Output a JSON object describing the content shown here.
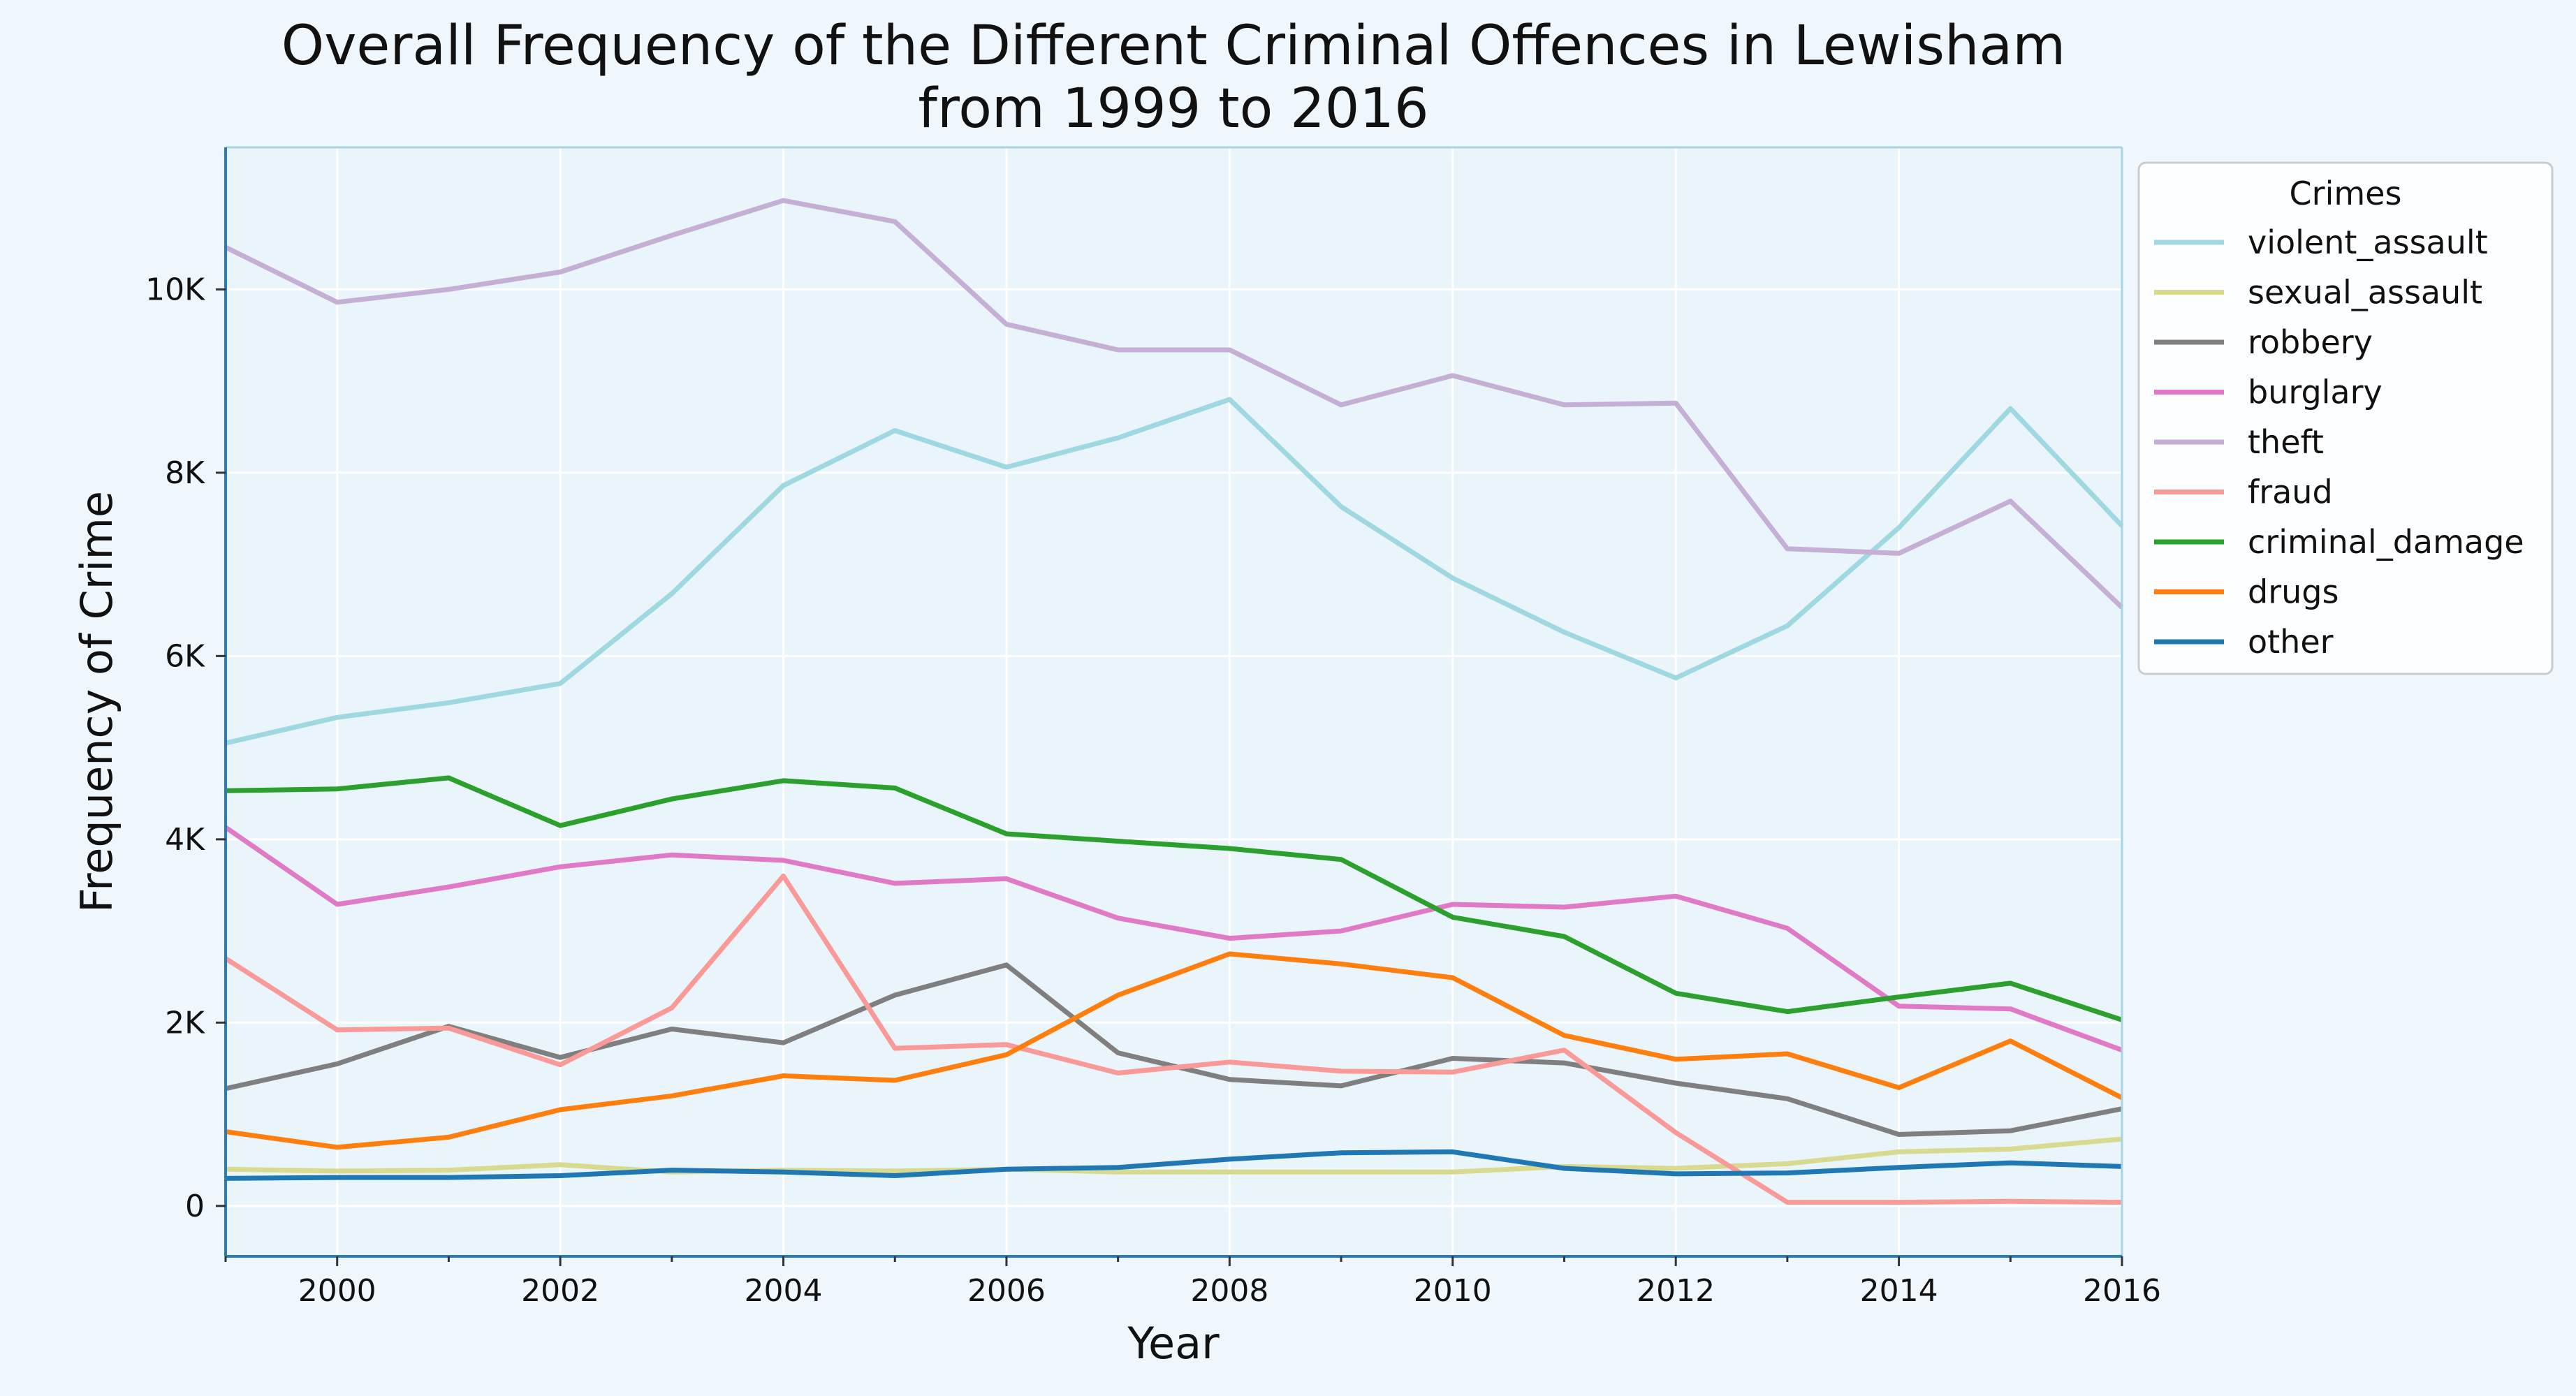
{
  "chart_data": {
    "type": "line",
    "title": "Overall Frequency of the Different Criminal Offences in Lewisham\nfrom 1999 to 2016",
    "xlabel": "Year",
    "ylabel": "Frequency of Crime",
    "xlim": [
      1999,
      2016
    ],
    "ylim": [
      -550,
      11550
    ],
    "x_ticks": [
      2000,
      2002,
      2004,
      2006,
      2008,
      2010,
      2012,
      2014,
      2016
    ],
    "x_tick_labels": [
      "2000",
      "2002",
      "2004",
      "2006",
      "2008",
      "2010",
      "2012",
      "2014",
      "2016"
    ],
    "y_ticks": [
      0,
      2000,
      4000,
      6000,
      8000,
      10000
    ],
    "y_tick_labels": [
      "0",
      "2K",
      "4K",
      "6K",
      "8K",
      "10K"
    ],
    "grid": true,
    "legend_title": "Crimes",
    "legend_position": "outside right, top",
    "x": [
      1999,
      2000,
      2001,
      2002,
      2003,
      2004,
      2005,
      2006,
      2007,
      2008,
      2009,
      2010,
      2011,
      2012,
      2013,
      2014,
      2015,
      2016
    ],
    "series": [
      {
        "name": "violent_assault",
        "color": "#9fd8e1",
        "values": [
          5050,
          5330,
          5490,
          5700,
          6680,
          7860,
          8460,
          8060,
          8380,
          8800,
          7630,
          6850,
          6260,
          5760,
          6330,
          7400,
          8700,
          7420
        ]
      },
      {
        "name": "sexual_assault",
        "color": "#d8db8f",
        "values": [
          400,
          380,
          390,
          450,
          370,
          390,
          380,
          400,
          370,
          370,
          370,
          370,
          430,
          410,
          460,
          590,
          620,
          730
        ]
      },
      {
        "name": "robbery",
        "color": "#7f7f7f",
        "values": [
          1280,
          1550,
          1960,
          1620,
          1930,
          1780,
          2300,
          2630,
          1670,
          1380,
          1310,
          1610,
          1560,
          1340,
          1170,
          780,
          820,
          1060
        ]
      },
      {
        "name": "burglary",
        "color": "#e07ac6",
        "values": [
          4130,
          3290,
          3480,
          3700,
          3830,
          3770,
          3520,
          3570,
          3140,
          2920,
          3000,
          3290,
          3260,
          3380,
          3030,
          2180,
          2150,
          1700
        ]
      },
      {
        "name": "theft",
        "color": "#c5afd5",
        "values": [
          10460,
          9860,
          10000,
          10190,
          10590,
          10970,
          10740,
          9620,
          9340,
          9340,
          8740,
          9060,
          8740,
          8760,
          7170,
          7120,
          7690,
          6530
        ]
      },
      {
        "name": "fraud",
        "color": "#fa9a98",
        "values": [
          2700,
          1920,
          1940,
          1540,
          2160,
          3600,
          1720,
          1760,
          1450,
          1570,
          1470,
          1460,
          1700,
          800,
          40,
          40,
          50,
          40
        ]
      },
      {
        "name": "criminal_damage",
        "color": "#2ca02c",
        "values": [
          4530,
          4550,
          4670,
          4150,
          4440,
          4640,
          4560,
          4060,
          3980,
          3900,
          3780,
          3150,
          2940,
          2320,
          2120,
          2280,
          2430,
          2030
        ]
      },
      {
        "name": "drugs",
        "color": "#ff7f0e",
        "values": [
          810,
          640,
          750,
          1050,
          1200,
          1420,
          1370,
          1650,
          2300,
          2750,
          2640,
          2490,
          1860,
          1600,
          1660,
          1290,
          1800,
          1180
        ]
      },
      {
        "name": "other",
        "color": "#1f77b4",
        "values": [
          300,
          310,
          310,
          330,
          390,
          370,
          330,
          400,
          420,
          510,
          580,
          590,
          410,
          350,
          360,
          420,
          470,
          430
        ]
      }
    ]
  },
  "colors": {
    "background": "#eff7fc",
    "plot_background": "#eaf4fb",
    "axis_line": "#2b7bb9",
    "frame": "#a8d5e2",
    "grid": "#ffffff",
    "text": "#111111"
  }
}
